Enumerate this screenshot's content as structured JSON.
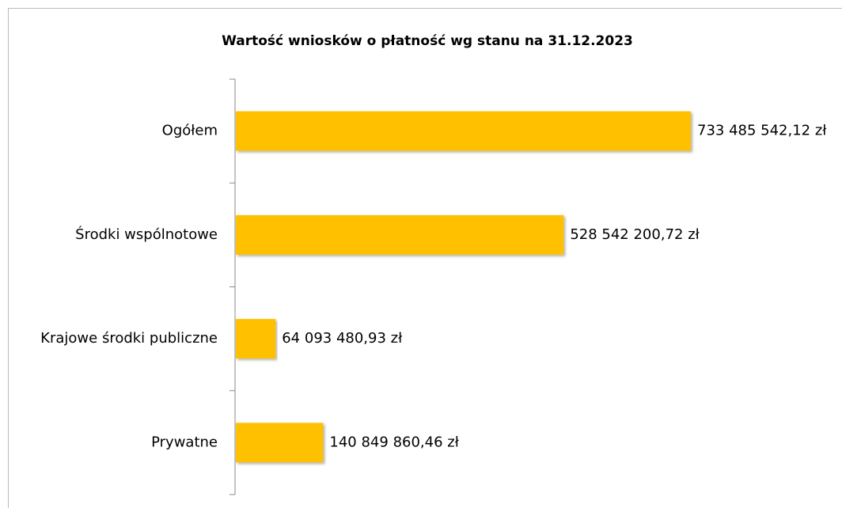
{
  "chart_data": {
    "type": "barh",
    "title": "Wartość wniosków o płatność wg stanu na 31.12.2023",
    "categories": [
      "Ogółem",
      "Środki wspólnotowe",
      "Krajowe środki publiczne",
      "Prywatne"
    ],
    "values": [
      733485542.12,
      528542200.72,
      64093480.93,
      140849860.46
    ],
    "value_labels": [
      "733 485 542,12 zł",
      "528 542 200,72 zł",
      "64 093 480,93 zł",
      "140 849 860,46 zł"
    ],
    "color": "#ffc000"
  }
}
